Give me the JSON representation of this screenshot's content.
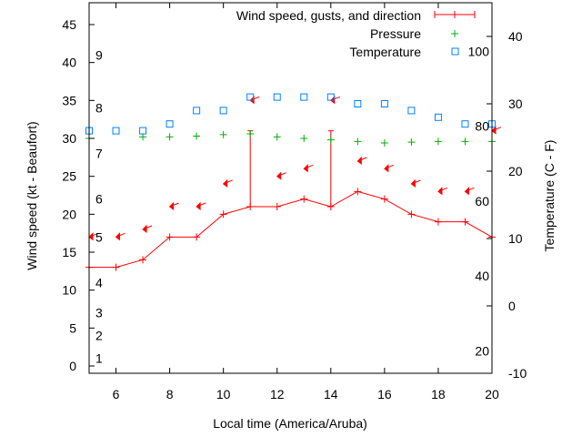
{
  "chart_data": {
    "type": "line",
    "xlabel": "Local time (America/Aruba)",
    "ylabel": "Wind speed (kt - Beaufort)",
    "y2label": "Temperature (C - F)",
    "xlim": [
      5,
      20
    ],
    "ylim": [
      -1,
      48
    ],
    "y2lim": [
      -10.8,
      45.4
    ],
    "xticks": [
      6,
      8,
      10,
      12,
      14,
      16,
      18,
      20
    ],
    "yticks": [
      0,
      5,
      10,
      15,
      20,
      25,
      30,
      35,
      40,
      45
    ],
    "y2ticks": [
      -10,
      0,
      10,
      20,
      30,
      40
    ],
    "beaufort_labels": [
      {
        "label": "1",
        "kt": 1
      },
      {
        "label": "2",
        "kt": 4
      },
      {
        "label": "3",
        "kt": 7
      },
      {
        "label": "4",
        "kt": 11
      },
      {
        "label": "5",
        "kt": 17
      },
      {
        "label": "6",
        "kt": 22
      },
      {
        "label": "7",
        "kt": 28
      },
      {
        "label": "8",
        "kt": 34
      },
      {
        "label": "9",
        "kt": 41
      }
    ],
    "fahrenheit_labels": [
      {
        "label": "20",
        "f": 20
      },
      {
        "label": "40",
        "f": 40
      },
      {
        "label": "60",
        "f": 60
      },
      {
        "label": "80",
        "f": 80
      },
      {
        "label": "100",
        "f": 100
      }
    ],
    "legend": [
      "Wind speed, gusts, and direction",
      "Pressure",
      "Temperature"
    ],
    "legend_position": "top-right",
    "x": [
      5,
      6,
      7,
      8,
      9,
      10,
      11,
      12,
      13,
      14,
      15,
      16,
      17,
      18,
      19,
      20
    ],
    "series": [
      {
        "name": "Wind speed",
        "color": "#ff0000",
        "values": [
          13,
          13,
          14,
          17,
          17,
          20,
          21,
          21,
          22,
          21,
          23,
          22,
          20,
          19,
          19,
          17
        ],
        "gusts": [
          null,
          null,
          null,
          null,
          null,
          null,
          31,
          null,
          null,
          31,
          null,
          null,
          null,
          null,
          null,
          null
        ],
        "direction_marker_kt": [
          17,
          17,
          18,
          21,
          21,
          24,
          35,
          25,
          26,
          35,
          27,
          26,
          24,
          23,
          23,
          31
        ]
      },
      {
        "name": "Pressure",
        "color": "#00b000",
        "values_plot_kt": [
          30,
          null,
          30.2,
          30.2,
          30.3,
          30.5,
          30.6,
          30.2,
          30,
          29.8,
          29.6,
          29.4,
          29.5,
          29.6,
          29.6,
          29.6
        ]
      },
      {
        "name": "Temperature",
        "color": "#0080ff",
        "unit": "C",
        "values": [
          26,
          26,
          26,
          27,
          29,
          29,
          31,
          31,
          31,
          31,
          30,
          30,
          29,
          28,
          27,
          27
        ]
      }
    ]
  }
}
